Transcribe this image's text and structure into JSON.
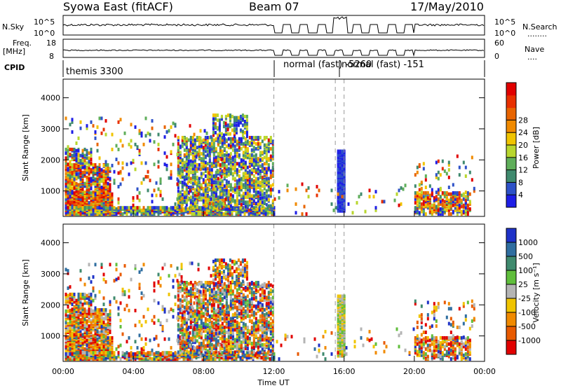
{
  "header": {
    "title": "Syowa East (fitACF)",
    "beam": "Beam 07",
    "date": "17/May/2010"
  },
  "top_panels": {
    "nsky_label": "N.Sky",
    "nsearch_label": "N.Search",
    "noise_ticks_left": [
      "10^5",
      "10^0"
    ],
    "noise_ticks_right": [
      "10^5",
      "10^0"
    ],
    "freq_label": "Freq.",
    "freq_unit": "[MHz]",
    "freq_ticks": [
      "18",
      "8"
    ],
    "nave_label": "Nave",
    "nave_ticks": [
      "60",
      "0"
    ],
    "cpid_label": "CPID",
    "cpid_segments": [
      {
        "label": "themis 3300",
        "start": 0,
        "end": 12
      },
      {
        "label": "normal (fast) -5260",
        "start": 12,
        "end": 15.8
      },
      {
        "label": "normal (fast) -151",
        "start": 15.8,
        "end": 24
      }
    ]
  },
  "chart_data": [
    {
      "type": "heatmap",
      "name": "power",
      "ylabel": "Slant Range [km]",
      "xlabel": "",
      "yticks": [
        1000,
        2000,
        3000,
        4000
      ],
      "ylim": [
        180,
        4600
      ],
      "xlim": [
        0,
        24
      ],
      "colorbar": {
        "label": "Power [dB]",
        "ticks": [
          "4",
          "8",
          "12",
          "16",
          "20",
          "24",
          "28"
        ],
        "colors": [
          "#1e1ee6",
          "#2e52c8",
          "#3f8a6e",
          "#5fae5a",
          "#b8d62e",
          "#f0c400",
          "#f08a00",
          "#e86400",
          "#e83000",
          "#e10000"
        ]
      },
      "dashed_lines_hours": [
        12,
        15.5,
        16
      ]
    },
    {
      "type": "heatmap",
      "name": "velocity",
      "ylabel": "Slant Range [km]",
      "xlabel": "Time UT",
      "xticks": [
        "00:00",
        "04:00",
        "08:00",
        "12:00",
        "16:00",
        "20:00",
        "00:00"
      ],
      "xtick_hours": [
        0,
        4,
        8,
        12,
        16,
        20,
        24
      ],
      "yticks": [
        1000,
        2000,
        3000,
        4000
      ],
      "ylim": [
        180,
        4600
      ],
      "xlim": [
        0,
        24
      ],
      "colorbar": {
        "label": "Velocity [m s⁻¹]",
        "ticks": [
          "1000",
          "500",
          "100",
          "25",
          "-25",
          "-100",
          "-500",
          "-1000"
        ],
        "colors": [
          "#1e32c8",
          "#2f6ea0",
          "#3f8a6e",
          "#60be3c",
          "#b4b4b4",
          "#f0c400",
          "#f08a00",
          "#e85a00",
          "#e10000"
        ]
      },
      "dashed_lines_hours": [
        12,
        15.5,
        16
      ]
    }
  ]
}
